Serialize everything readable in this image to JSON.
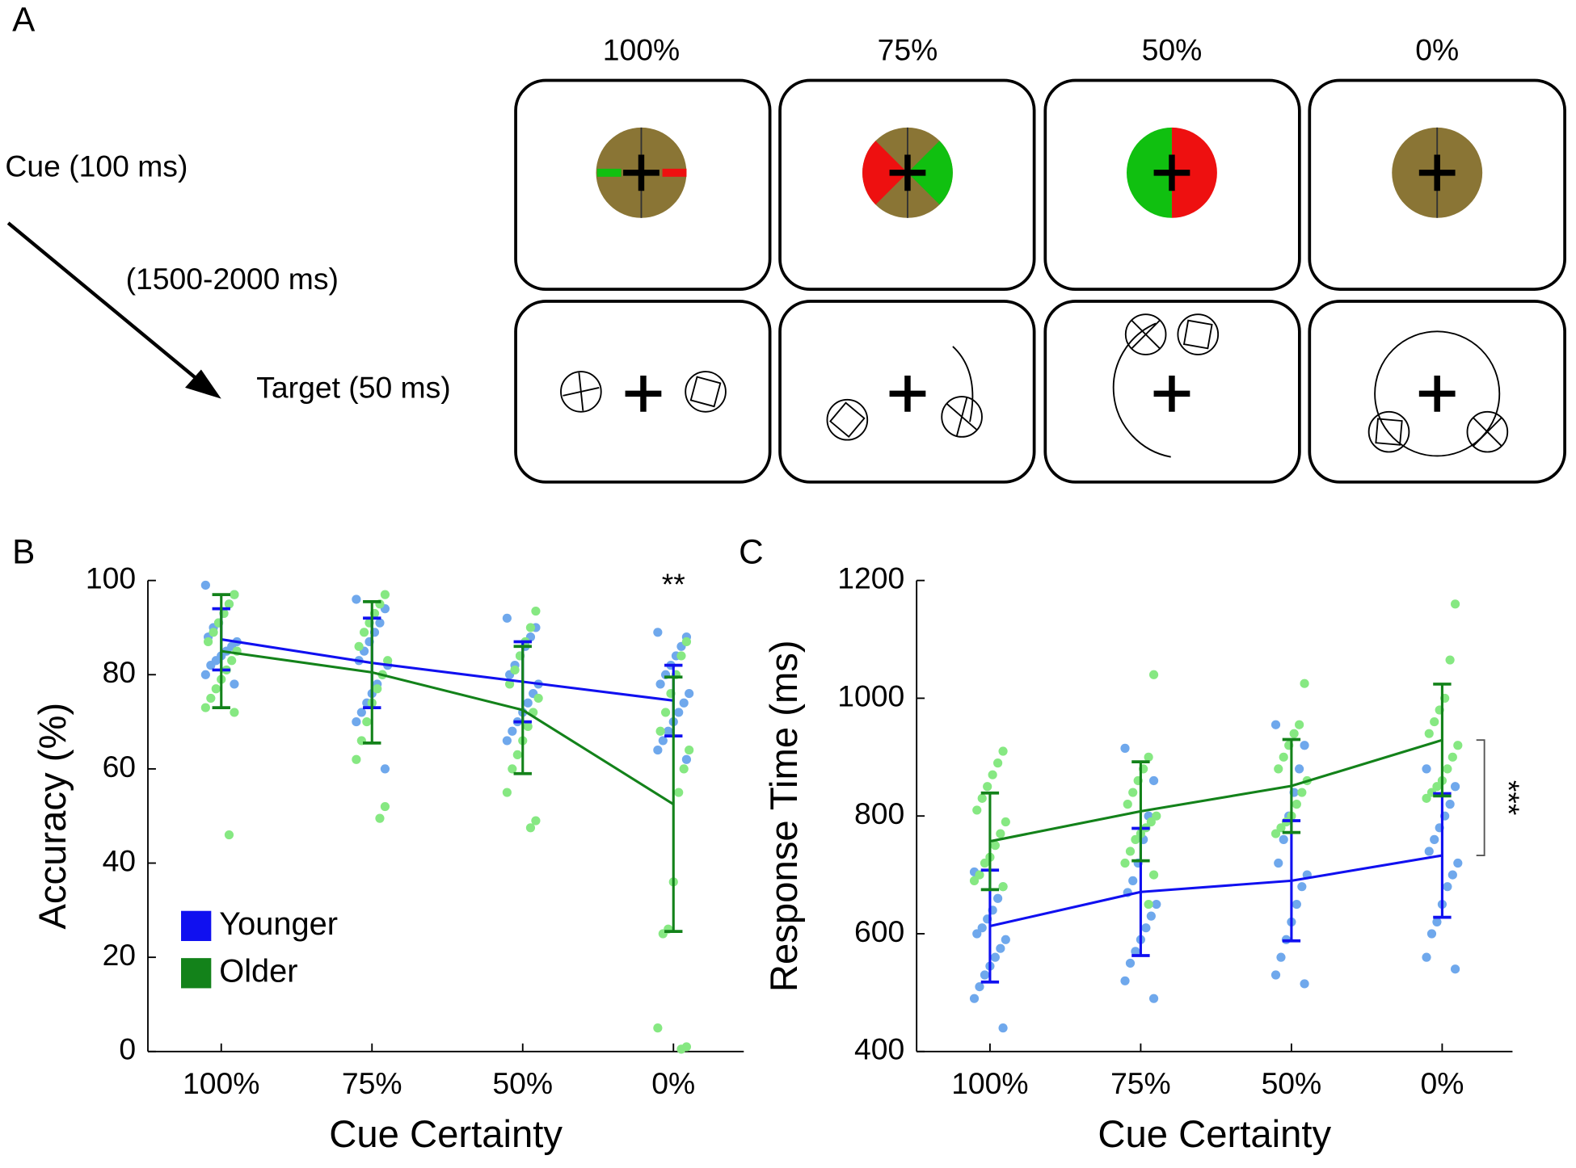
{
  "panel_labels": [
    "A",
    "B",
    "C"
  ],
  "diagram": {
    "columns": [
      "100%",
      "75%",
      "50%",
      "0%"
    ],
    "cue_label": "Cue (100 ms)",
    "interval_label": "(1500-2000 ms)",
    "target_label": "Target (50 ms)"
  },
  "chart_data": [
    {
      "type": "line",
      "xlabel": "Cue Certainty",
      "ylabel": "Accuracy (%)",
      "categories": [
        "100%",
        "75%",
        "50%",
        "0%"
      ],
      "ylim": [
        0,
        100
      ],
      "yticks": [
        0,
        20,
        40,
        60,
        80,
        100
      ],
      "legend": "lower left",
      "annotation": "**",
      "series": [
        {
          "name": "Younger",
          "color": "#1010f0",
          "point_color": "#6fa8ec",
          "values": [
            87.5,
            82.5,
            78.5,
            74.5
          ],
          "errors": [
            6.5,
            9.5,
            8.5,
            7.5
          ],
          "points": [
            [
              99,
              97,
              95,
              93,
              91,
              90,
              88,
              87,
              86,
              85,
              84,
              83,
              82,
              80,
              78
            ],
            [
              96,
              94,
              91,
              89,
              87,
              85,
              83,
              82,
              80,
              78,
              76,
              74,
              72,
              70,
              60
            ],
            [
              92,
              90,
              88,
              86,
              84,
              82,
              80,
              78,
              76,
              74,
              72,
              70,
              68,
              66
            ],
            [
              89,
              88,
              86,
              84,
              82,
              80,
              78,
              76,
              74,
              72,
              70,
              68,
              66,
              64,
              62
            ]
          ]
        },
        {
          "name": "Older",
          "color": "#13821a",
          "point_color": "#86e882",
          "values": [
            85,
            80.5,
            72.5,
            52.5
          ],
          "errors": [
            12,
            15,
            13.5,
            27
          ],
          "points": [
            [
              97,
              95,
              93,
              91,
              89,
              87,
              85,
              83,
              81,
              79,
              77,
              75,
              73,
              72,
              46
            ],
            [
              97,
              95,
              93,
              91,
              89,
              86,
              83,
              80,
              77,
              74,
              70,
              66,
              62,
              52,
              49.5
            ],
            [
              93.5,
              90,
              87,
              84,
              81,
              78,
              75,
              72,
              69,
              66,
              63,
              60,
              55,
              49,
              47.5
            ],
            [
              87,
              84,
              80,
              76,
              72,
              68,
              64,
              60,
              55,
              36,
              26,
              25,
              5,
              1,
              0.5
            ]
          ]
        }
      ]
    },
    {
      "type": "line",
      "xlabel": "Cue Certainty",
      "ylabel": "Response Time (ms)",
      "categories": [
        "100%",
        "75%",
        "50%",
        "0%"
      ],
      "ylim": [
        400,
        1200
      ],
      "yticks": [
        400,
        600,
        800,
        1000,
        1200
      ],
      "annotation": "***",
      "series": [
        {
          "name": "Younger",
          "color": "#1010f0",
          "point_color": "#6fa8ec",
          "values": [
            613,
            671,
            690,
            733
          ],
          "errors": [
            95,
            108,
            102,
            105
          ],
          "points": [
            [
              705,
              680,
              660,
              640,
              625,
              610,
              600,
              590,
              575,
              560,
              545,
              530,
              510,
              490,
              440
            ],
            [
              915,
              860,
              800,
              760,
              720,
              690,
              670,
              650,
              630,
              610,
              590,
              570,
              550,
              520,
              490
            ],
            [
              955,
              920,
              880,
              840,
              800,
              760,
              720,
              700,
              680,
              650,
              620,
              590,
              560,
              530,
              515
            ],
            [
              880,
              850,
              820,
              800,
              780,
              760,
              740,
              720,
              700,
              680,
              650,
              620,
              600,
              560,
              540
            ]
          ]
        },
        {
          "name": "Older",
          "color": "#13821a",
          "point_color": "#86e882",
          "values": [
            757,
            808,
            851,
            929
          ],
          "errors": [
            82,
            84,
            79,
            95
          ],
          "points": [
            [
              910,
              890,
              870,
              850,
              830,
              810,
              790,
              770,
              750,
              730,
              720,
              700,
              690,
              680
            ],
            [
              1040,
              900,
              880,
              860,
              840,
              820,
              800,
              790,
              780,
              770,
              760,
              740,
              720,
              700,
              650
            ],
            [
              1025,
              955,
              940,
              920,
              900,
              880,
              860,
              840,
              820,
              800,
              790,
              780,
              770
            ],
            [
              1160,
              1065,
              1000,
              980,
              960,
              940,
              920,
              900,
              880,
              860,
              850,
              840,
              830
            ]
          ]
        }
      ]
    }
  ]
}
